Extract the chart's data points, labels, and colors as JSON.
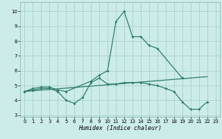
{
  "xlabel": "Humidex (Indice chaleur)",
  "line_color": "#2a7a6a",
  "bg_color": "#ccecea",
  "grid_color": "#aacfcc",
  "curve1_x": [
    0,
    1,
    2,
    3,
    4,
    5,
    8,
    9,
    10,
    11,
    12,
    13,
    14,
    15,
    16,
    19
  ],
  "curve1_y": [
    4.6,
    4.8,
    4.9,
    4.9,
    4.7,
    4.6,
    5.3,
    5.7,
    6.0,
    9.3,
    10.0,
    8.3,
    8.3,
    7.7,
    7.5,
    5.5
  ],
  "curve2_x": [
    0,
    1,
    2,
    3,
    4,
    5,
    6,
    7,
    8,
    9,
    10,
    11,
    12,
    13,
    14,
    15,
    16,
    17,
    18,
    19,
    20,
    21,
    22
  ],
  "curve2_y": [
    4.6,
    4.7,
    4.8,
    4.8,
    4.6,
    4.0,
    3.8,
    4.2,
    5.2,
    5.5,
    5.1,
    5.1,
    5.2,
    5.2,
    5.2,
    5.1,
    5.0,
    4.8,
    4.6,
    3.9,
    3.4,
    3.4,
    3.9
  ],
  "curve3_x": [
    0,
    22
  ],
  "curve3_y": [
    4.6,
    5.6
  ],
  "xlim": [
    -0.5,
    23.5
  ],
  "ylim": [
    2.9,
    10.6
  ],
  "yticks": [
    3,
    4,
    5,
    6,
    7,
    8,
    9,
    10
  ],
  "xticks": [
    0,
    1,
    2,
    3,
    4,
    5,
    6,
    7,
    8,
    9,
    10,
    11,
    12,
    13,
    14,
    15,
    16,
    17,
    18,
    19,
    20,
    21,
    22,
    23
  ],
  "tick_fontsize": 5.0,
  "xlabel_fontsize": 6.0
}
